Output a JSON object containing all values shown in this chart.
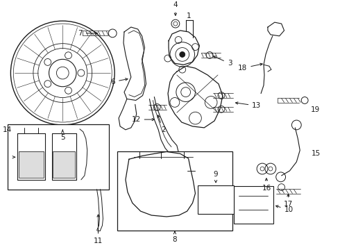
{
  "bg_color": "#ffffff",
  "lc": "#1a1a1a",
  "fig_w": 4.9,
  "fig_h": 3.6,
  "dpi": 100,
  "xlim": [
    0,
    490
  ],
  "ylim": [
    0,
    360
  ]
}
